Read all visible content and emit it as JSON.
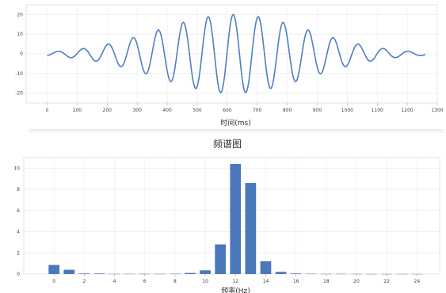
{
  "chart_data": [
    {
      "type": "line",
      "title": "",
      "xlabel": "时间(ms)",
      "ylabel": "",
      "xlim": [
        -70,
        1300
      ],
      "ylim": [
        -25,
        25
      ],
      "x_ticks": [
        "0",
        "100",
        "200",
        "300",
        "400",
        "500",
        "600",
        "700",
        "800",
        "900",
        "1000",
        "1100",
        "1200",
        "1300"
      ],
      "y_ticks": [
        "-20",
        "-10",
        "0",
        "10",
        "20"
      ],
      "grid": true,
      "series": [
        {
          "color": "#4f7fc1",
          "description": "wave packet: 12 Hz oscillation, peak amplitude ~20 at t=620 ms, plotted from 0 to 1260 ms",
          "amplitude": 20,
          "frequency_hz": 12,
          "center_ms": 620,
          "x_range": [
            0,
            1260
          ]
        }
      ]
    },
    {
      "type": "bar",
      "title": "频谱图",
      "xlabel": "频率(Hz)",
      "ylabel": "",
      "xlim": [
        -2,
        25.5
      ],
      "ylim": [
        0,
        11
      ],
      "x_ticks": [
        "0",
        "2",
        "4",
        "6",
        "8",
        "10",
        "12",
        "14",
        "16",
        "18",
        "20",
        "22",
        "24"
      ],
      "y_ticks": [
        "0",
        "2",
        "4",
        "6",
        "8",
        "10"
      ],
      "grid": true,
      "color": "#4a78bb",
      "categories": [
        0,
        1,
        2,
        3,
        4,
        5,
        6,
        7,
        8,
        9,
        10,
        11,
        12,
        13,
        14,
        15,
        16,
        17,
        18,
        19,
        20,
        21,
        22,
        23,
        24
      ],
      "values": [
        0.85,
        0.4,
        0.05,
        0.05,
        0.02,
        0.02,
        0.02,
        0.02,
        0.03,
        0.1,
        0.35,
        2.8,
        10.4,
        8.6,
        1.2,
        0.2,
        0.05,
        0.03,
        0.02,
        0.02,
        0.02,
        0.01,
        0.01,
        0.01,
        0.01
      ]
    }
  ]
}
